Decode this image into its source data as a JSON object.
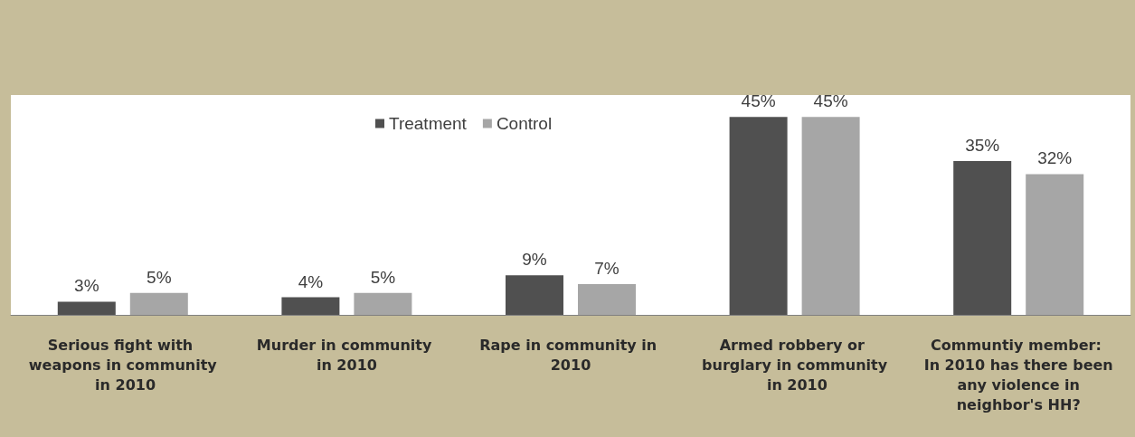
{
  "chart_data": {
    "type": "bar",
    "categories": [
      "Serious fight with weapons in community in 2010",
      "Murder in community in 2010",
      "Rape in community in 2010",
      "Armed robbery or burglary in community in 2010",
      "Communtiy member: In 2010 has there been any violence in neighbor's HH?"
    ],
    "series": [
      {
        "name": "Treatment",
        "color": "#505050",
        "values": [
          3,
          4,
          9,
          45,
          35
        ],
        "value_labels": [
          "3%",
          "4%",
          "9%",
          "45%",
          "35%"
        ]
      },
      {
        "name": "Control",
        "color": "#a6a6a6",
        "values": [
          5,
          5,
          7,
          45,
          32
        ],
        "value_labels": [
          "5%",
          "5%",
          "7%",
          "45%",
          "32%"
        ]
      }
    ],
    "legend": "top"
  }
}
